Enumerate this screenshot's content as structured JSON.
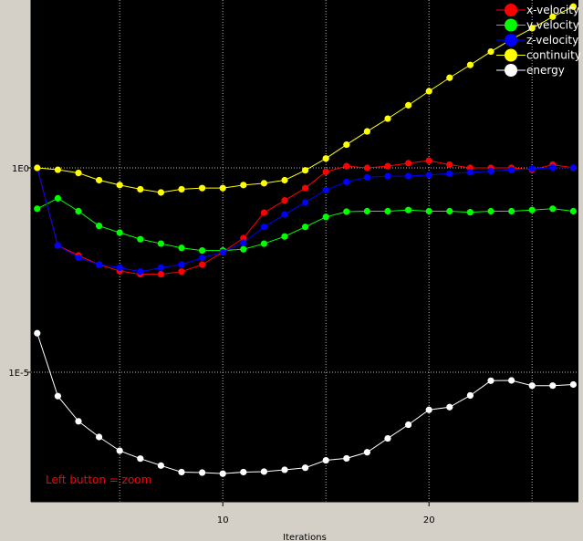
{
  "chart_data": {
    "type": "line",
    "xlabel": "Iterations",
    "ylabel": "",
    "xlim": [
      1,
      27
    ],
    "y_scale": "log",
    "ylim": [
      1e-08,
      10000.0
    ],
    "x_ticks": [
      {
        "value": 10,
        "label": "10"
      },
      {
        "value": 20,
        "label": "20"
      }
    ],
    "y_ticks": [
      {
        "value": 1,
        "label": "1E0"
      },
      {
        "value": 1e-05,
        "label": "1E-5"
      }
    ],
    "grid": true,
    "legend": "top-right",
    "background": "#000000",
    "series": [
      {
        "name": "x-velocity",
        "color": "#ff0000",
        "x": [
          1,
          2,
          3,
          4,
          5,
          6,
          7,
          8,
          9,
          10,
          11,
          12,
          13,
          14,
          15,
          16,
          17,
          18,
          19,
          20,
          21,
          22,
          23,
          24,
          25,
          26,
          27
        ],
        "y": [
          1,
          0.0126,
          0.0072,
          0.0043,
          0.003,
          0.0025,
          0.0025,
          0.0029,
          0.0043,
          0.0087,
          0.0191,
          0.08,
          0.16,
          0.32,
          0.8,
          1.1,
          1.0,
          1.1,
          1.3,
          1.5,
          1.2,
          1.0,
          1.0,
          1.0,
          0.9,
          1.2,
          1.0
        ]
      },
      {
        "name": "y-velocity",
        "color": "#00ff00",
        "x": [
          1,
          2,
          3,
          4,
          5,
          6,
          7,
          8,
          9,
          10,
          11,
          12,
          13,
          14,
          15,
          16,
          17,
          18,
          19,
          20,
          21,
          22,
          23,
          24,
          25,
          26,
          27
        ],
        "y": [
          0.1,
          0.18,
          0.087,
          0.038,
          0.026,
          0.018,
          0.014,
          0.011,
          0.0095,
          0.0095,
          0.0102,
          0.014,
          0.021,
          0.036,
          0.063,
          0.085,
          0.087,
          0.087,
          0.093,
          0.087,
          0.087,
          0.082,
          0.087,
          0.087,
          0.093,
          0.1,
          0.087
        ]
      },
      {
        "name": "z-velocity",
        "color": "#0000ff",
        "x": [
          1,
          2,
          3,
          4,
          5,
          6,
          7,
          8,
          9,
          10,
          11,
          12,
          13,
          14,
          15,
          16,
          17,
          18,
          19,
          20,
          21,
          22,
          23,
          24,
          25,
          26,
          27
        ],
        "y": [
          1,
          0.0126,
          0.0063,
          0.0043,
          0.0036,
          0.0029,
          0.0036,
          0.0043,
          0.0063,
          0.0087,
          0.0148,
          0.0358,
          0.0723,
          0.1433,
          0.2868,
          0.4538,
          0.5858,
          0.6262,
          0.6262,
          0.6698,
          0.7209,
          0.7784,
          0.8319,
          0.8892,
          0.9506,
          1.0146,
          1.0146
        ]
      },
      {
        "name": "continuity",
        "color": "#ffff00",
        "x": [
          1,
          2,
          3,
          4,
          5,
          6,
          7,
          8,
          9,
          10,
          11,
          12,
          13,
          14,
          15,
          16,
          17,
          18,
          19,
          20,
          21,
          22,
          23,
          24,
          25,
          26,
          27
        ],
        "y": [
          1,
          0.9,
          0.75,
          0.5,
          0.38,
          0.3,
          0.25,
          0.3,
          0.32,
          0.32,
          0.38,
          0.42,
          0.5,
          0.87,
          1.7,
          3.7,
          7.8,
          16,
          34,
          75,
          160,
          330,
          700,
          1400,
          2600,
          5000,
          8800
        ]
      },
      {
        "name": "energy",
        "color": "#ffffff",
        "x": [
          1,
          2,
          3,
          4,
          5,
          6,
          7,
          8,
          9,
          10,
          11,
          12,
          13,
          14,
          15,
          16,
          17,
          18,
          19,
          20,
          21,
          22,
          23,
          24,
          25,
          26,
          27
        ],
        "y": [
          9e-05,
          2.6e-06,
          6.3e-07,
          2.6e-07,
          1.2e-07,
          7.7e-08,
          5.2e-08,
          3.6e-08,
          3.5e-08,
          3.3e-08,
          3.6e-08,
          3.7e-08,
          4.1e-08,
          4.6e-08,
          7e-08,
          7.8e-08,
          1.1e-07,
          2.4e-07,
          5.2e-07,
          1.2e-06,
          1.4e-06,
          2.7e-06,
          6.2e-06,
          6.3e-06,
          4.7e-06,
          4.7e-06,
          5e-06
        ]
      }
    ],
    "annotation": {
      "text": "Left button = zoom",
      "color": "#ff0000"
    }
  }
}
